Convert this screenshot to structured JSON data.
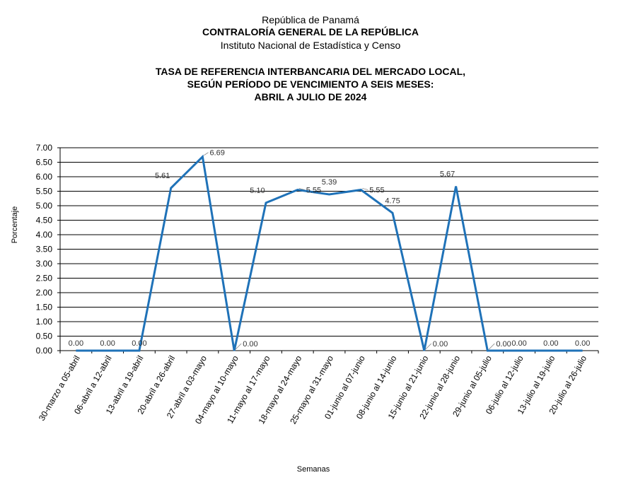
{
  "header": {
    "country": "República de Panamá",
    "organization": "CONTRALORÍA GENERAL DE LA REPÚBLICA",
    "institute": "Instituto  Nacional de Estadística y Censo",
    "title_lines": [
      "TASA DE REFERENCIA INTERBANCARIA DEL MERCADO LOCAL,",
      "SEGÚN PERÍODO DE VENCIMIENTO A SEIS MESES:",
      "ABRIL A JULIO DE 2024"
    ]
  },
  "chart_data": {
    "type": "line",
    "title": "TASA DE REFERENCIA INTERBANCARIA DEL MERCADO LOCAL, SEGÚN PERÍODO DE VENCIMIENTO A SEIS MESES: ABRIL A JULIO DE 2024",
    "xlabel": "Semanas",
    "ylabel": "Porcentaje",
    "ylim": [
      0,
      7
    ],
    "y_ticks": [
      "0.00",
      "0.50",
      "1.00",
      "1.50",
      "2.00",
      "2.50",
      "3.00",
      "3.50",
      "4.00",
      "4.50",
      "5.00",
      "5.50",
      "6.00",
      "6.50",
      "7.00"
    ],
    "grid": true,
    "line_color": "#1f72b8",
    "categories": [
      "30-marzo a 05-abril",
      "06-abril a 12-abril",
      "13-abril a 19-abril",
      "20-abril a 26-abril",
      "27-abril a 03-mayo",
      "04-mayo al 10-mayo",
      "11-mayo al 17-mayo",
      "18-mayo al 24-mayo",
      "25-mayo al 31-mayo",
      "01-junio al 07-junio",
      "08-junio al 14-junio",
      "15-junio al 21-junio",
      "22-junio al 28-junio",
      "29-junio al 05-julio",
      "06-julio al 12-julio",
      "13-julio al 19-julio",
      "20-julio al 26-julio"
    ],
    "values": [
      0.0,
      0.0,
      0.0,
      5.61,
      6.69,
      0.0,
      5.1,
      5.55,
      5.39,
      5.55,
      4.75,
      0.0,
      5.67,
      0.0,
      0.0,
      0.0,
      0.0
    ],
    "data_labels": [
      "0.00",
      "0.00",
      "0.00",
      "5.61",
      "6.69",
      "0.00",
      "5.10",
      "5.55",
      "5.39",
      "5.55",
      "4.75",
      "0.00",
      "5.67",
      "0.00",
      "0.00",
      "0.00",
      "0.00"
    ]
  }
}
